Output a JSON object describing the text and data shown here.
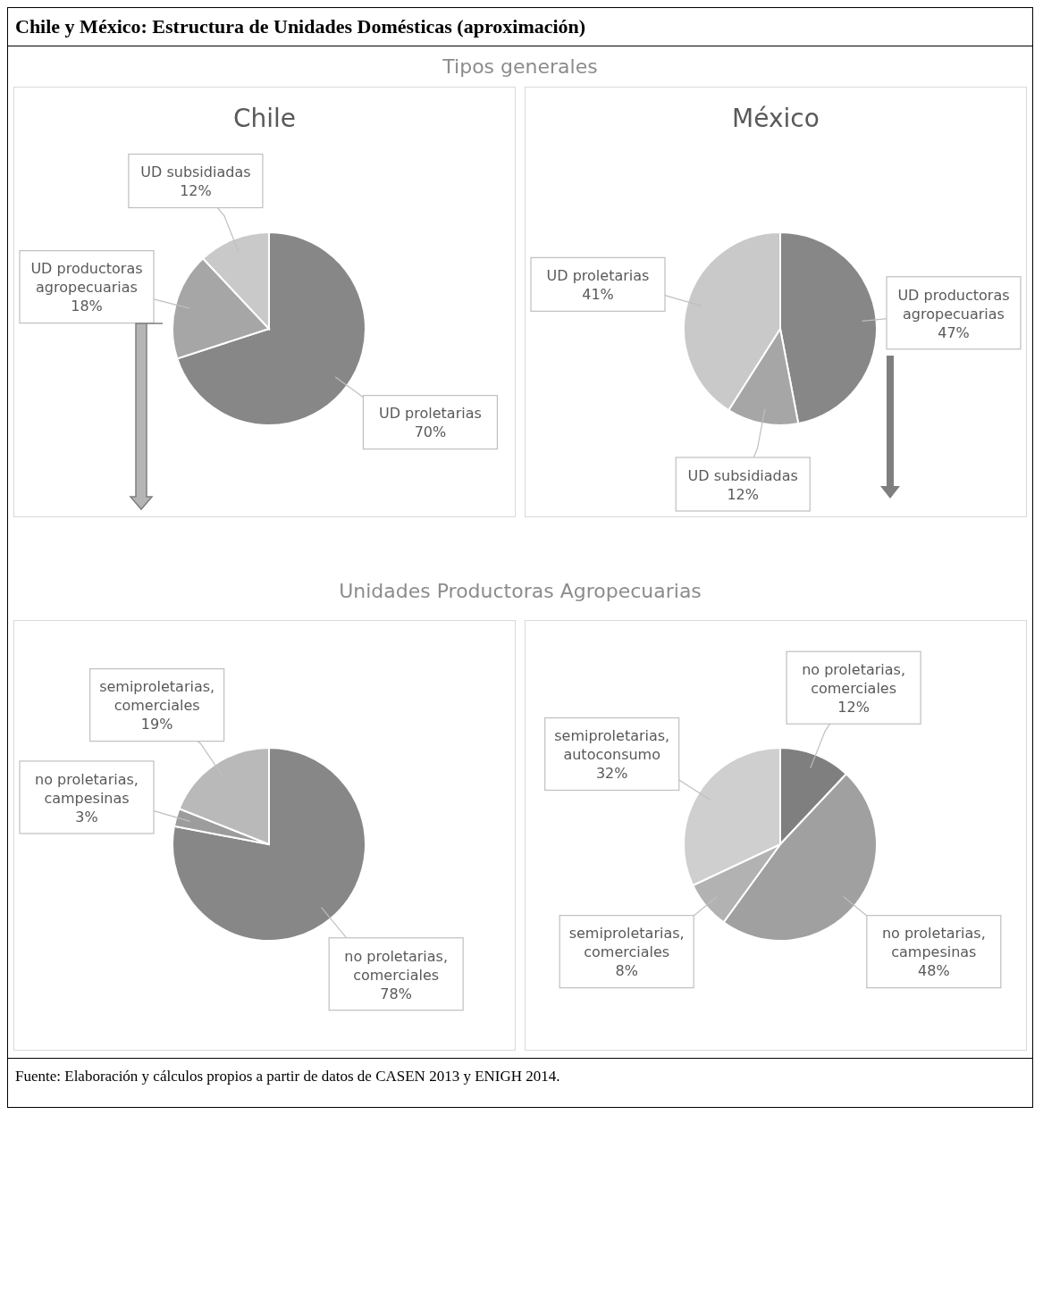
{
  "chart_data": [
    {
      "type": "pie",
      "title": "Chile",
      "categories": [
        "UD proletarias",
        "UD productoras agropecuarias",
        "UD subsidiadas"
      ],
      "values": [
        70,
        18,
        12
      ],
      "value_labels": [
        "70%",
        "18%",
        "12%"
      ],
      "colors": [
        "#878787",
        "#a6a6a6",
        "#c9c9c9"
      ],
      "legend": false,
      "annotations": [
        "Chile y México: Estructura de Unidades Domésticas (aproximación)",
        "Tipos generales"
      ]
    },
    {
      "type": "pie",
      "title": "México",
      "categories": [
        "UD productoras agropecuarias",
        "UD subsidiadas",
        "UD proletarias"
      ],
      "values": [
        47,
        12,
        41
      ],
      "value_labels": [
        "47%",
        "12%",
        "41%"
      ],
      "colors": [
        "#878787",
        "#a6a6a6",
        "#c9c9c9"
      ],
      "legend": false
    },
    {
      "type": "pie",
      "categories": [
        "no proletarias, comerciales",
        "no proletarias, campesinas",
        "semiproletarias, comerciales"
      ],
      "values": [
        78,
        3,
        19
      ],
      "value_labels": [
        "78%",
        "3%",
        "19%"
      ],
      "colors": [
        "#878787",
        "#9c9c9c",
        "#b9b9b9"
      ],
      "legend": false,
      "annotations": [
        "Unidades Productoras Agropecuarias",
        "Fuente: Elaboración y cálculos propios a partir de datos de CASEN 2013 y ENIGH 2014."
      ]
    },
    {
      "type": "pie",
      "categories": [
        "no proletarias, comerciales",
        "no proletarias, campesinas",
        "semiproletarias, comerciales",
        "semiproletarias, autoconsumo"
      ],
      "values": [
        12,
        48,
        8,
        32
      ],
      "value_labels": [
        "12%",
        "48%",
        "8%",
        "32%"
      ],
      "colors": [
        "#7f7f7f",
        "#a0a0a0",
        "#b2b2b2",
        "#cfcfcf"
      ],
      "legend": false
    }
  ]
}
